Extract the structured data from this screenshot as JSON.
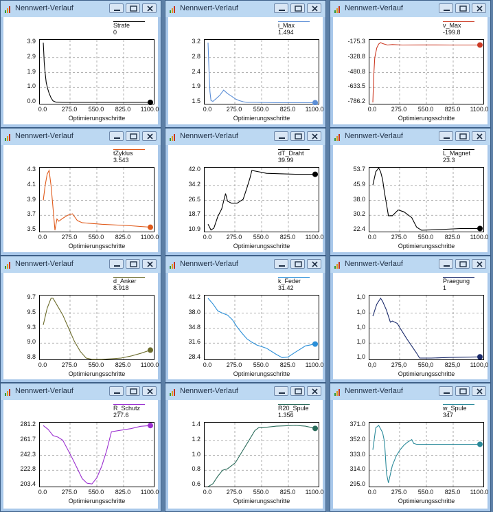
{
  "colors": {
    "desktop": "#5c7fa6",
    "window_frame": "#a9c8ea",
    "titlebar": "#bcd8f2"
  },
  "window_controls": [
    "minimize-icon",
    "maximize-icon",
    "close-icon"
  ],
  "windows": [
    {
      "title": "Nennwert-Verlauf",
      "legend_name": "Strafe",
      "legend_value": "0",
      "legend_color": "#000000",
      "y_ticks": [
        "3.9",
        "2.9",
        "1.9",
        "1.0",
        "0.0"
      ],
      "x_ticks": [
        "0.0",
        "275.0",
        "550.0",
        "825.0",
        "1100.0"
      ],
      "xlabel": "Optimierungsschritte",
      "chart_data": {
        "type": "line",
        "color": "#000000",
        "ylim": [
          0,
          3.9
        ],
        "xlim": [
          0,
          1100
        ],
        "x": [
          0,
          5,
          10,
          20,
          30,
          45,
          60,
          80,
          100,
          130,
          200,
          300,
          500,
          800,
          1100
        ],
        "y": [
          3.9,
          3.3,
          2.6,
          1.9,
          1.3,
          0.9,
          0.6,
          0.3,
          0.1,
          0.02,
          0,
          0,
          0,
          0,
          0
        ]
      }
    },
    {
      "title": "Nennwert-Verlauf",
      "legend_name": "i_Max",
      "legend_value": "1.494",
      "legend_color": "#5b8ed6",
      "y_ticks": [
        "3.2",
        "2.8",
        "2.4",
        "1.9",
        "1.5"
      ],
      "x_ticks": [
        "0.0",
        "275.0",
        "550.0",
        "825.0",
        "1100.0"
      ],
      "xlabel": "Optimierungsschritte",
      "chart_data": {
        "type": "line",
        "color": "#5b8ed6",
        "ylim": [
          1.5,
          3.2
        ],
        "xlim": [
          0,
          1100
        ],
        "x": [
          0,
          10,
          20,
          30,
          50,
          80,
          120,
          160,
          200,
          240,
          280,
          320,
          360,
          400,
          500,
          700,
          1100
        ],
        "y": [
          3.2,
          2.4,
          1.8,
          1.55,
          1.53,
          1.6,
          1.7,
          1.85,
          1.75,
          1.68,
          1.6,
          1.55,
          1.52,
          1.5,
          1.5,
          1.49,
          1.49
        ]
      }
    },
    {
      "title": "Nennwert-Verlauf",
      "legend_name": "v_Max",
      "legend_value": "-199.8",
      "legend_color": "#cc3a24",
      "y_ticks": [
        "-175.3",
        "-328.8",
        "-480.8",
        "-633.5",
        "-786.2"
      ],
      "x_ticks": [
        "0.0",
        "275.0",
        "550.0",
        "825.0",
        "1100.0"
      ],
      "xlabel": "Optimierungsschritte",
      "chart_data": {
        "type": "line",
        "color": "#cc3a24",
        "ylim": [
          -786.2,
          -175.3
        ],
        "xlim": [
          0,
          1100
        ],
        "x": [
          0,
          10,
          20,
          40,
          60,
          80,
          100,
          150,
          200,
          300,
          500,
          800,
          1100
        ],
        "y": [
          -786,
          -500,
          -330,
          -230,
          -190,
          -175,
          -185,
          -200,
          -195,
          -200,
          -199,
          -200,
          -199.8
        ]
      }
    },
    {
      "title": "Nennwert-Verlauf",
      "legend_name": "tZyklus",
      "legend_value": "3.543",
      "legend_color": "#e05a1a",
      "y_ticks": [
        "4.3",
        "4.1",
        "3.9",
        "3.7",
        "3.5"
      ],
      "x_ticks": [
        "0.0",
        "275.0",
        "550.0",
        "825.0",
        "1100.0"
      ],
      "xlabel": "Optimierungsschritte",
      "chart_data": {
        "type": "line",
        "color": "#e05a1a",
        "ylim": [
          3.5,
          4.3
        ],
        "xlim": [
          0,
          1100
        ],
        "x": [
          0,
          20,
          40,
          60,
          80,
          100,
          120,
          140,
          160,
          200,
          250,
          300,
          350,
          400,
          600,
          900,
          1100
        ],
        "y": [
          3.9,
          4.1,
          4.25,
          4.3,
          4.1,
          3.8,
          3.5,
          3.65,
          3.62,
          3.66,
          3.7,
          3.72,
          3.63,
          3.6,
          3.58,
          3.56,
          3.54
        ]
      }
    },
    {
      "title": "Nennwert-Verlauf",
      "legend_name": "dT_Draht",
      "legend_value": "39.99",
      "legend_color": "#000000",
      "y_ticks": [
        "42.0",
        "34.2",
        "26.5",
        "18.7",
        "10.9"
      ],
      "x_ticks": [
        "0.0",
        "275.0",
        "550.0",
        "825.0",
        "1100.0"
      ],
      "xlabel": "Optimierungsschritte",
      "chart_data": {
        "type": "line",
        "color": "#000000",
        "ylim": [
          10.9,
          42.0
        ],
        "xlim": [
          0,
          1100
        ],
        "x": [
          0,
          30,
          60,
          100,
          140,
          180,
          200,
          240,
          300,
          360,
          400,
          430,
          450,
          600,
          900,
          1100
        ],
        "y": [
          14,
          11,
          12,
          18,
          22,
          30,
          26,
          25,
          25,
          27,
          33,
          38,
          42,
          40.5,
          40,
          40
        ]
      }
    },
    {
      "title": "Nennwert-Verlauf",
      "legend_name": "L_Magnet",
      "legend_value": "23.3",
      "legend_color": "#000000",
      "y_ticks": [
        "53.7",
        "45.9",
        "38.0",
        "30.2",
        "22.4"
      ],
      "x_ticks": [
        "0.0",
        "275.0",
        "550.0",
        "825.0",
        "1100.0"
      ],
      "xlabel": "Optimierungsschritte",
      "chart_data": {
        "type": "line",
        "color": "#000000",
        "ylim": [
          22.4,
          53.7
        ],
        "xlim": [
          0,
          1100
        ],
        "x": [
          0,
          30,
          60,
          80,
          100,
          120,
          140,
          160,
          200,
          260,
          320,
          400,
          450,
          500,
          700,
          900,
          1100
        ],
        "y": [
          46,
          53,
          55,
          53,
          49,
          42,
          36,
          30,
          30,
          33,
          32,
          29,
          24,
          22.4,
          22.8,
          23.3,
          23.3
        ]
      }
    },
    {
      "title": "Nennwert-Verlauf",
      "legend_name": "d_Anker",
      "legend_value": "8.918",
      "legend_color": "#6b6b2a",
      "y_ticks": [
        "9.7",
        "9.5",
        "9.3",
        "9.0",
        "8.8"
      ],
      "x_ticks": [
        "0.0",
        "275.0",
        "550.0",
        "825.0",
        "1100.0"
      ],
      "xlabel": "Optimierungsschritte",
      "chart_data": {
        "type": "line",
        "color": "#6b6b2a",
        "ylim": [
          8.8,
          9.7
        ],
        "xlim": [
          0,
          1100
        ],
        "x": [
          0,
          40,
          80,
          100,
          140,
          200,
          260,
          320,
          380,
          440,
          500,
          600,
          700,
          800,
          900,
          1000,
          1100
        ],
        "y": [
          9.3,
          9.55,
          9.7,
          9.7,
          9.6,
          9.45,
          9.25,
          9.05,
          8.9,
          8.8,
          8.78,
          8.78,
          8.79,
          8.8,
          8.83,
          8.87,
          8.92
        ]
      }
    },
    {
      "title": "Nennwert-Verlauf",
      "legend_name": "k_Feder",
      "legend_value": "31.42",
      "legend_color": "#2b8fd8",
      "y_ticks": [
        "41.2",
        "38.0",
        "34.8",
        "31.6",
        "28.4"
      ],
      "x_ticks": [
        "0.0",
        "275.0",
        "550.0",
        "825.0",
        "1100.0"
      ],
      "xlabel": "Optimierungsschritte",
      "chart_data": {
        "type": "line",
        "color": "#2b8fd8",
        "ylim": [
          28.4,
          41.2
        ],
        "xlim": [
          0,
          1100
        ],
        "x": [
          0,
          50,
          100,
          150,
          200,
          250,
          300,
          350,
          400,
          450,
          500,
          600,
          700,
          760,
          820,
          900,
          1000,
          1100
        ],
        "y": [
          41.2,
          40,
          38.5,
          38,
          37.6,
          36.6,
          35,
          33.7,
          32.5,
          31.8,
          31.2,
          30.5,
          29.2,
          28.5,
          28.6,
          29.7,
          31,
          31.4
        ]
      }
    },
    {
      "title": "Nennwert-Verlauf",
      "legend_name": "Praegung",
      "legend_value": "1",
      "legend_color": "#1a2a6b",
      "y_ticks": [
        "1,0",
        "1,0",
        "1,0",
        "1,0",
        "1,0"
      ],
      "x_ticks": [
        "0,0",
        "275,0",
        "550,0",
        "825,0",
        "1100,0"
      ],
      "xlabel": "Optimierungsschritte",
      "chart_data": {
        "type": "line",
        "color": "#1a2a6b",
        "ylim": [
          0,
          1
        ],
        "xlim": [
          0,
          1100
        ],
        "x": [
          0,
          40,
          80,
          100,
          140,
          180,
          200,
          250,
          300,
          350,
          400,
          450,
          480,
          600,
          800,
          1100
        ],
        "y": [
          0.7,
          0.9,
          1.0,
          0.95,
          0.8,
          0.6,
          0.62,
          0.58,
          0.45,
          0.32,
          0.2,
          0.08,
          0.0,
          0.0,
          0.01,
          0.02
        ]
      }
    },
    {
      "title": "Nennwert-Verlauf",
      "legend_name": "R_Schutz",
      "legend_value": "277.6",
      "legend_color": "#9b30d0",
      "y_ticks": [
        "281.2",
        "261.7",
        "242.3",
        "222.8",
        "203.4"
      ],
      "x_ticks": [
        "0.0",
        "275.0",
        "550.0",
        "825.0",
        "1100.0"
      ],
      "xlabel": "Optimierungsschritte",
      "chart_data": {
        "type": "line",
        "color": "#9b30d0",
        "ylim": [
          203.4,
          281.2
        ],
        "xlim": [
          0,
          1100
        ],
        "x": [
          0,
          50,
          100,
          150,
          200,
          250,
          300,
          350,
          400,
          450,
          500,
          550,
          600,
          650,
          700,
          800,
          900,
          1000,
          1100
        ],
        "y": [
          281,
          276,
          268,
          266,
          262,
          250,
          238,
          225,
          212,
          206,
          205,
          213,
          228,
          248,
          273,
          275,
          277,
          280,
          281
        ]
      }
    },
    {
      "title": "Nennwert-Verlauf",
      "legend_name": "R20_Spule",
      "legend_value": "1.356",
      "legend_color": "#2a6b5a",
      "y_ticks": [
        "1.4",
        "1.2",
        "1.0",
        "0.8",
        "0.6"
      ],
      "x_ticks": [
        "0.0",
        "275.0",
        "550.0",
        "825.0",
        "1100.0"
      ],
      "xlabel": "Optimierungsschritte",
      "chart_data": {
        "type": "line",
        "color": "#2a6b5a",
        "ylim": [
          0.6,
          1.4
        ],
        "xlim": [
          0,
          1100
        ],
        "x": [
          0,
          50,
          100,
          150,
          200,
          280,
          350,
          420,
          480,
          520,
          560,
          700,
          900,
          1000,
          1100
        ],
        "y": [
          0.58,
          0.62,
          0.72,
          0.8,
          0.82,
          0.9,
          1.05,
          1.2,
          1.33,
          1.37,
          1.37,
          1.39,
          1.4,
          1.39,
          1.36
        ]
      }
    },
    {
      "title": "Nennwert-Verlauf",
      "legend_name": "w_Spule",
      "legend_value": "347",
      "legend_color": "#2a8a9a",
      "y_ticks": [
        "371.0",
        "352.0",
        "333.0",
        "314.0",
        "295.0"
      ],
      "x_ticks": [
        "0.0",
        "275.0",
        "550.0",
        "825.0",
        "1100.0"
      ],
      "xlabel": "Optimierungsschritte",
      "chart_data": {
        "type": "line",
        "color": "#2a8a9a",
        "ylim": [
          295,
          371
        ],
        "xlim": [
          0,
          1100
        ],
        "x": [
          0,
          30,
          60,
          100,
          120,
          140,
          160,
          200,
          240,
          280,
          320,
          360,
          400,
          420,
          450,
          600,
          800,
          1100
        ],
        "y": [
          340,
          368,
          371,
          362,
          350,
          310,
          298,
          320,
          332,
          340,
          346,
          350,
          353,
          348,
          347,
          347,
          347,
          347
        ]
      }
    }
  ]
}
